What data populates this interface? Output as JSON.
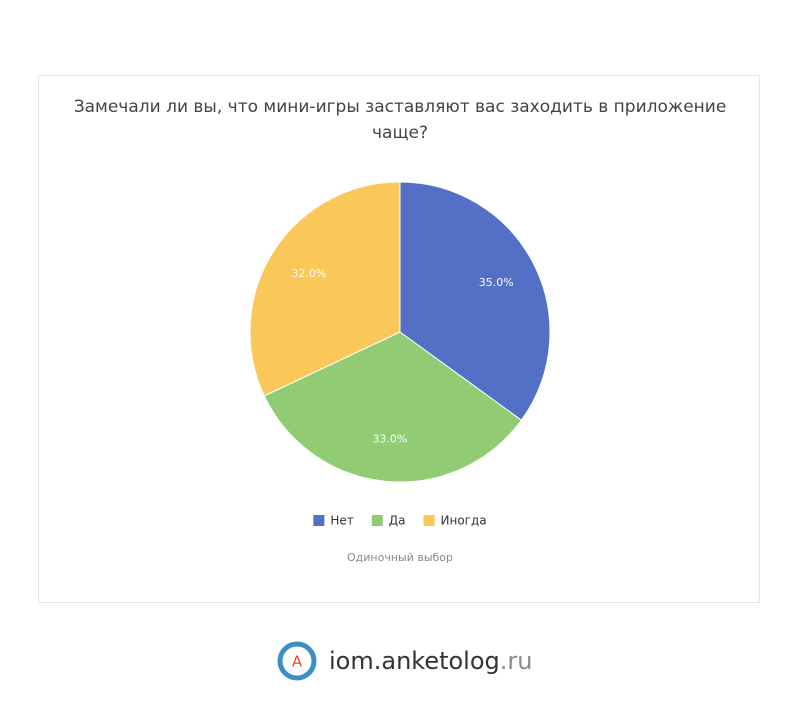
{
  "chart_data": {
    "type": "pie",
    "title": "Замечали ли вы, что мини-игры заставляют вас заходить в приложение чаще?",
    "categories": [
      "Нет",
      "Да",
      "Иногда"
    ],
    "values": [
      35,
      33,
      32
    ],
    "value_labels": [
      "35.0%",
      "33.0%",
      "32.0%"
    ],
    "colors": [
      "#5470c6",
      "#91cc75",
      "#fac858"
    ],
    "legend": "bottom",
    "note": "Одиночный выбор"
  },
  "footer": {
    "logo_letter": "A",
    "site": "iom.anketolog",
    "domain": ".ru"
  }
}
